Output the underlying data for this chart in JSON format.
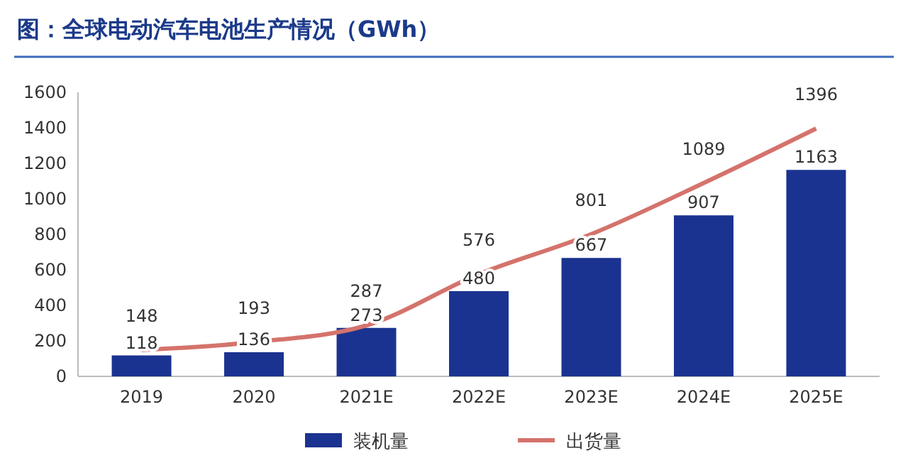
{
  "chart_data": {
    "type": "bar",
    "title": "图：全球电动汽车电池生产情况（GWh）",
    "categories": [
      "2019",
      "2020",
      "2021E",
      "2022E",
      "2023E",
      "2024E",
      "2025E"
    ],
    "series": [
      {
        "name": "装机量",
        "color": "#1b3390",
        "values": [
          118,
          136,
          273,
          480,
          667,
          907,
          1163
        ]
      },
      {
        "name": "出货量",
        "type": "line",
        "color": "#d4736c",
        "values": [
          148,
          193,
          287,
          576,
          801,
          1089,
          1396
        ]
      }
    ],
    "ylim": [
      0,
      1600
    ],
    "yticks": [
      0,
      200,
      400,
      600,
      800,
      1000,
      1200,
      1400,
      1600
    ],
    "data_labels": true,
    "legend": "bottom",
    "marker": "none",
    "line_style": "solid"
  }
}
